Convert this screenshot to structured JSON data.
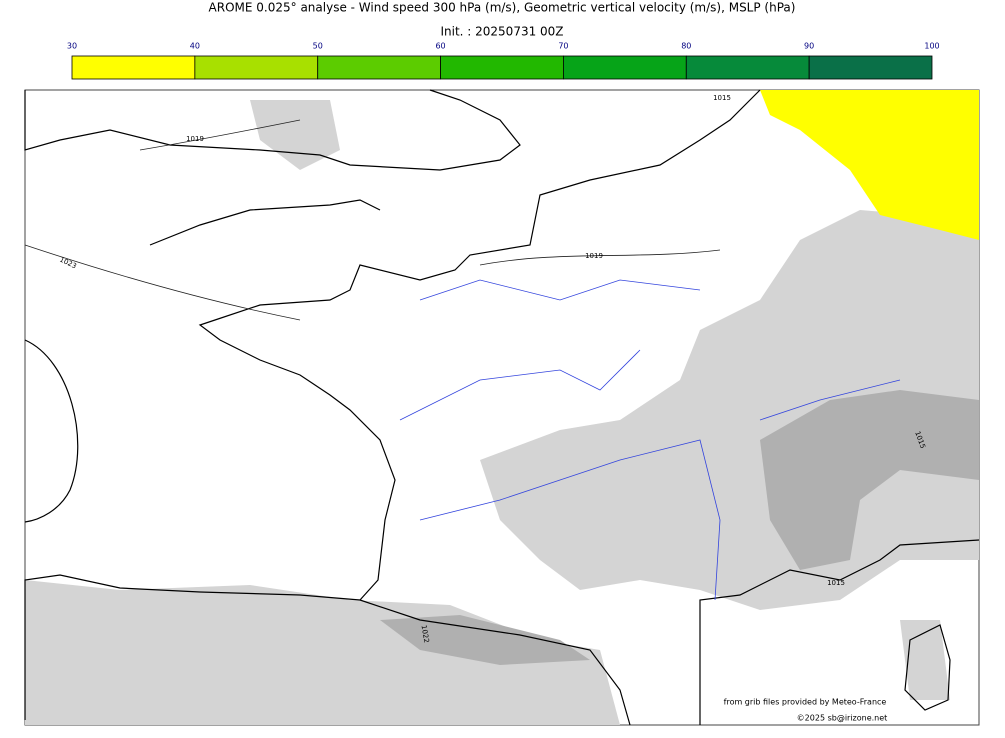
{
  "title": "AROME 0.025° analyse - Wind speed 300 hPa (m/s), Geometric vertical velocity (m/s), MSLP (hPa)",
  "subtitle": "Init. : 20250731 00Z",
  "colorbar": {
    "ticks": [
      30,
      40,
      50,
      60,
      70,
      80,
      90,
      100
    ],
    "colors": [
      "#ffff00",
      "#a8e000",
      "#5ccc00",
      "#22b800",
      "#06a418",
      "#068a3a",
      "#0a7048"
    ]
  },
  "contour_labels": [
    "1019",
    "1023",
    "1019",
    "1015",
    "1022",
    "1015",
    "1015"
  ],
  "credits": [
    "from grib files provided by Meteo-France",
    "©2025 sb@irizone.net"
  ]
}
